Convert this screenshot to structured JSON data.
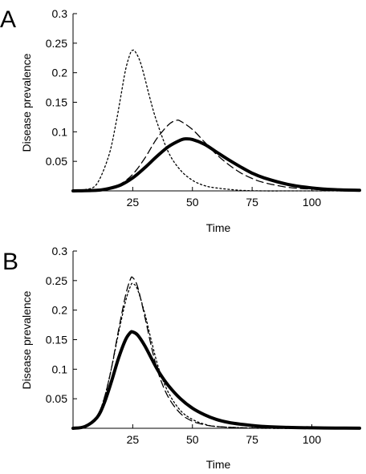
{
  "chart_data": [
    {
      "type": "line",
      "panel_label": "A",
      "xlabel": "Time",
      "ylabel": "Disease prevalence",
      "xlim": [
        0,
        120
      ],
      "ylim": [
        0,
        0.3
      ],
      "xticks": [
        25,
        50,
        75,
        100
      ],
      "yticks": [
        0.05,
        0.1,
        0.15,
        0.2,
        0.25,
        0.3
      ],
      "xtick_labels": [
        "25",
        "50",
        "75",
        "100"
      ],
      "ytick_labels": [
        "0.05",
        "0.1",
        "0.15",
        "0.2",
        "0.25",
        "0.3"
      ],
      "grid": false,
      "legend": "none",
      "series": [
        {
          "style": "dotted",
          "color": "#000000",
          "x": [
            0,
            5,
            10,
            15,
            18,
            20,
            22,
            24,
            25,
            26,
            28,
            30,
            32,
            35,
            40,
            45,
            50,
            55,
            60,
            70,
            80,
            90,
            100,
            120
          ],
          "y": [
            0.0,
            0.002,
            0.012,
            0.06,
            0.115,
            0.16,
            0.205,
            0.233,
            0.238,
            0.236,
            0.22,
            0.192,
            0.16,
            0.118,
            0.065,
            0.035,
            0.018,
            0.009,
            0.005,
            0.001,
            0.0,
            0.0,
            0.0,
            0.0
          ]
        },
        {
          "style": "dashed",
          "color": "#000000",
          "x": [
            0,
            10,
            15,
            20,
            25,
            30,
            35,
            40,
            43,
            45,
            50,
            55,
            60,
            65,
            70,
            75,
            80,
            90,
            100,
            110,
            120
          ],
          "y": [
            0.0,
            0.001,
            0.004,
            0.012,
            0.028,
            0.055,
            0.088,
            0.112,
            0.119,
            0.118,
            0.104,
            0.083,
            0.062,
            0.045,
            0.031,
            0.021,
            0.014,
            0.006,
            0.003,
            0.001,
            0.0
          ]
        },
        {
          "style": "solid-thick",
          "color": "#000000",
          "x": [
            0,
            10,
            15,
            20,
            25,
            30,
            35,
            40,
            45,
            47,
            50,
            55,
            60,
            65,
            70,
            75,
            80,
            90,
            100,
            110,
            120
          ],
          "y": [
            0.0,
            0.001,
            0.004,
            0.01,
            0.022,
            0.039,
            0.058,
            0.075,
            0.086,
            0.088,
            0.087,
            0.079,
            0.066,
            0.053,
            0.041,
            0.03,
            0.022,
            0.011,
            0.005,
            0.002,
            0.001
          ]
        }
      ]
    },
    {
      "type": "line",
      "panel_label": "B",
      "xlabel": "Time",
      "ylabel": "Disease prevalence",
      "xlim": [
        0,
        120
      ],
      "ylim": [
        0,
        0.3
      ],
      "xticks": [
        25,
        50,
        75,
        100
      ],
      "yticks": [
        0.05,
        0.1,
        0.15,
        0.2,
        0.25,
        0.3
      ],
      "xtick_labels": [
        "25",
        "50",
        "75",
        "100"
      ],
      "ytick_labels": [
        "0.05",
        "0.1",
        "0.15",
        "0.2",
        "0.25",
        "0.3"
      ],
      "grid": false,
      "legend": "none",
      "series": [
        {
          "style": "dotted",
          "color": "#000000",
          "x": [
            0,
            5,
            10,
            13,
            16,
            19,
            22,
            24,
            25,
            27,
            30,
            33,
            36,
            40,
            45,
            50,
            55,
            60,
            70,
            80,
            100,
            120
          ],
          "y": [
            0.0,
            0.003,
            0.02,
            0.05,
            0.1,
            0.16,
            0.215,
            0.24,
            0.245,
            0.235,
            0.195,
            0.145,
            0.1,
            0.06,
            0.03,
            0.015,
            0.007,
            0.003,
            0.001,
            0.0,
            0.0,
            0.0
          ]
        },
        {
          "style": "dashed",
          "color": "#000000",
          "x": [
            0,
            5,
            10,
            13,
            16,
            19,
            22,
            24,
            25,
            27,
            30,
            33,
            36,
            40,
            45,
            50,
            55,
            60,
            70,
            80,
            100,
            120
          ],
          "y": [
            0.0,
            0.003,
            0.02,
            0.05,
            0.1,
            0.165,
            0.225,
            0.252,
            0.255,
            0.24,
            0.19,
            0.135,
            0.09,
            0.052,
            0.025,
            0.012,
            0.006,
            0.003,
            0.001,
            0.0,
            0.0,
            0.0
          ]
        },
        {
          "style": "solid-thick",
          "color": "#000000",
          "x": [
            0,
            5,
            10,
            13,
            16,
            19,
            22,
            24,
            25,
            27,
            30,
            33,
            36,
            40,
            45,
            50,
            55,
            60,
            65,
            70,
            80,
            90,
            100,
            110,
            120
          ],
          "y": [
            0.0,
            0.003,
            0.018,
            0.042,
            0.078,
            0.118,
            0.15,
            0.162,
            0.163,
            0.158,
            0.14,
            0.117,
            0.095,
            0.072,
            0.05,
            0.034,
            0.023,
            0.015,
            0.01,
            0.007,
            0.003,
            0.0015,
            0.0008,
            0.0004,
            0.0002
          ]
        }
      ]
    }
  ]
}
